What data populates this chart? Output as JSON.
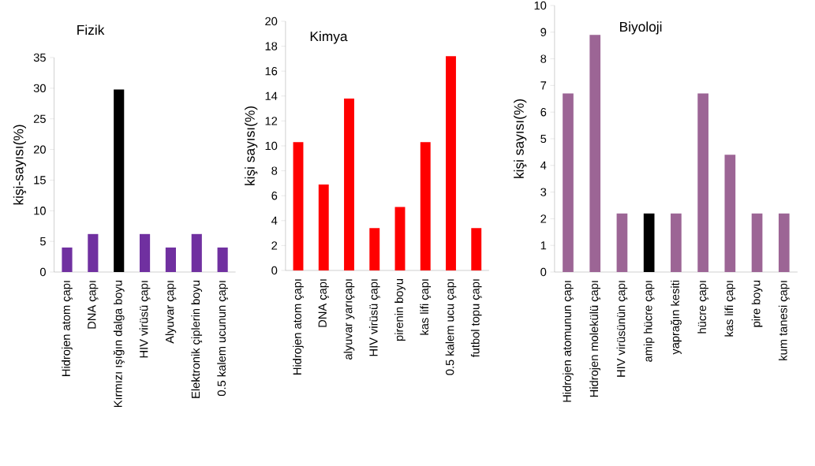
{
  "chart_data": [
    {
      "type": "bar",
      "title": "Fizik",
      "ylabel": "kişi-sayısı(%)",
      "categories": [
        "Hidrojen atom çapı",
        "DNA çapı",
        "Kırmızı ışığın dalga boyu",
        "HIV virüsü çapı",
        "Alyuvar çapı",
        "Elektronik çiplerin boyu",
        "0.5 kalem ucunun çapı"
      ],
      "values": [
        4,
        6.2,
        29.8,
        6.2,
        4,
        6.2,
        4
      ],
      "colors": [
        "#7030a0",
        "#7030a0",
        "#000000",
        "#7030a0",
        "#7030a0",
        "#7030a0",
        "#7030a0"
      ],
      "ylim": [
        0,
        35
      ],
      "yticks": [
        0,
        5,
        10,
        15,
        20,
        25,
        30,
        35
      ]
    },
    {
      "type": "bar",
      "title": "Kimya",
      "ylabel": "kişi sayısı(%)",
      "categories": [
        "Hidrojen atom çapı",
        "DNA  çapı",
        "alyuvar yarıçapı",
        "HIV virüsü çapı",
        "pirenin boyu",
        "kas  lifi çapı",
        "0.5 kalem ucu çapı",
        "futbol topu çapı"
      ],
      "values": [
        10.3,
        6.9,
        13.8,
        3.4,
        5.1,
        10.3,
        17.2,
        3.4
      ],
      "colors": [
        "#ff0000",
        "#ff0000",
        "#ff0000",
        "#ff0000",
        "#ff0000",
        "#ff0000",
        "#ff0000",
        "#ff0000"
      ],
      "ylim": [
        0,
        20
      ],
      "yticks": [
        0,
        2,
        4,
        6,
        8,
        10,
        12,
        14,
        16,
        18,
        20
      ]
    },
    {
      "type": "bar",
      "title": "Biyoloji",
      "ylabel": "kişi sayısı(%)",
      "categories": [
        "Hidrojen atomunun çapı",
        "Hidrojen molekülü çapı",
        "HIV virüsünün çapı",
        "amip hücre çapı",
        "yaprağın kesiti",
        "hücre çapı",
        "kas lifi çapı",
        "pire boyu",
        "kum tanesi çapı"
      ],
      "values": [
        6.7,
        8.9,
        2.2,
        2.2,
        2.2,
        6.7,
        4.4,
        2.2,
        2.2
      ],
      "colors": [
        "#9c6595",
        "#9c6595",
        "#9c6595",
        "#000000",
        "#9c6595",
        "#9c6595",
        "#9c6595",
        "#9c6595",
        "#9c6595"
      ],
      "ylim": [
        0,
        10
      ],
      "yticks": [
        0,
        1,
        2,
        3,
        4,
        5,
        6,
        7,
        8,
        9,
        10
      ]
    }
  ]
}
